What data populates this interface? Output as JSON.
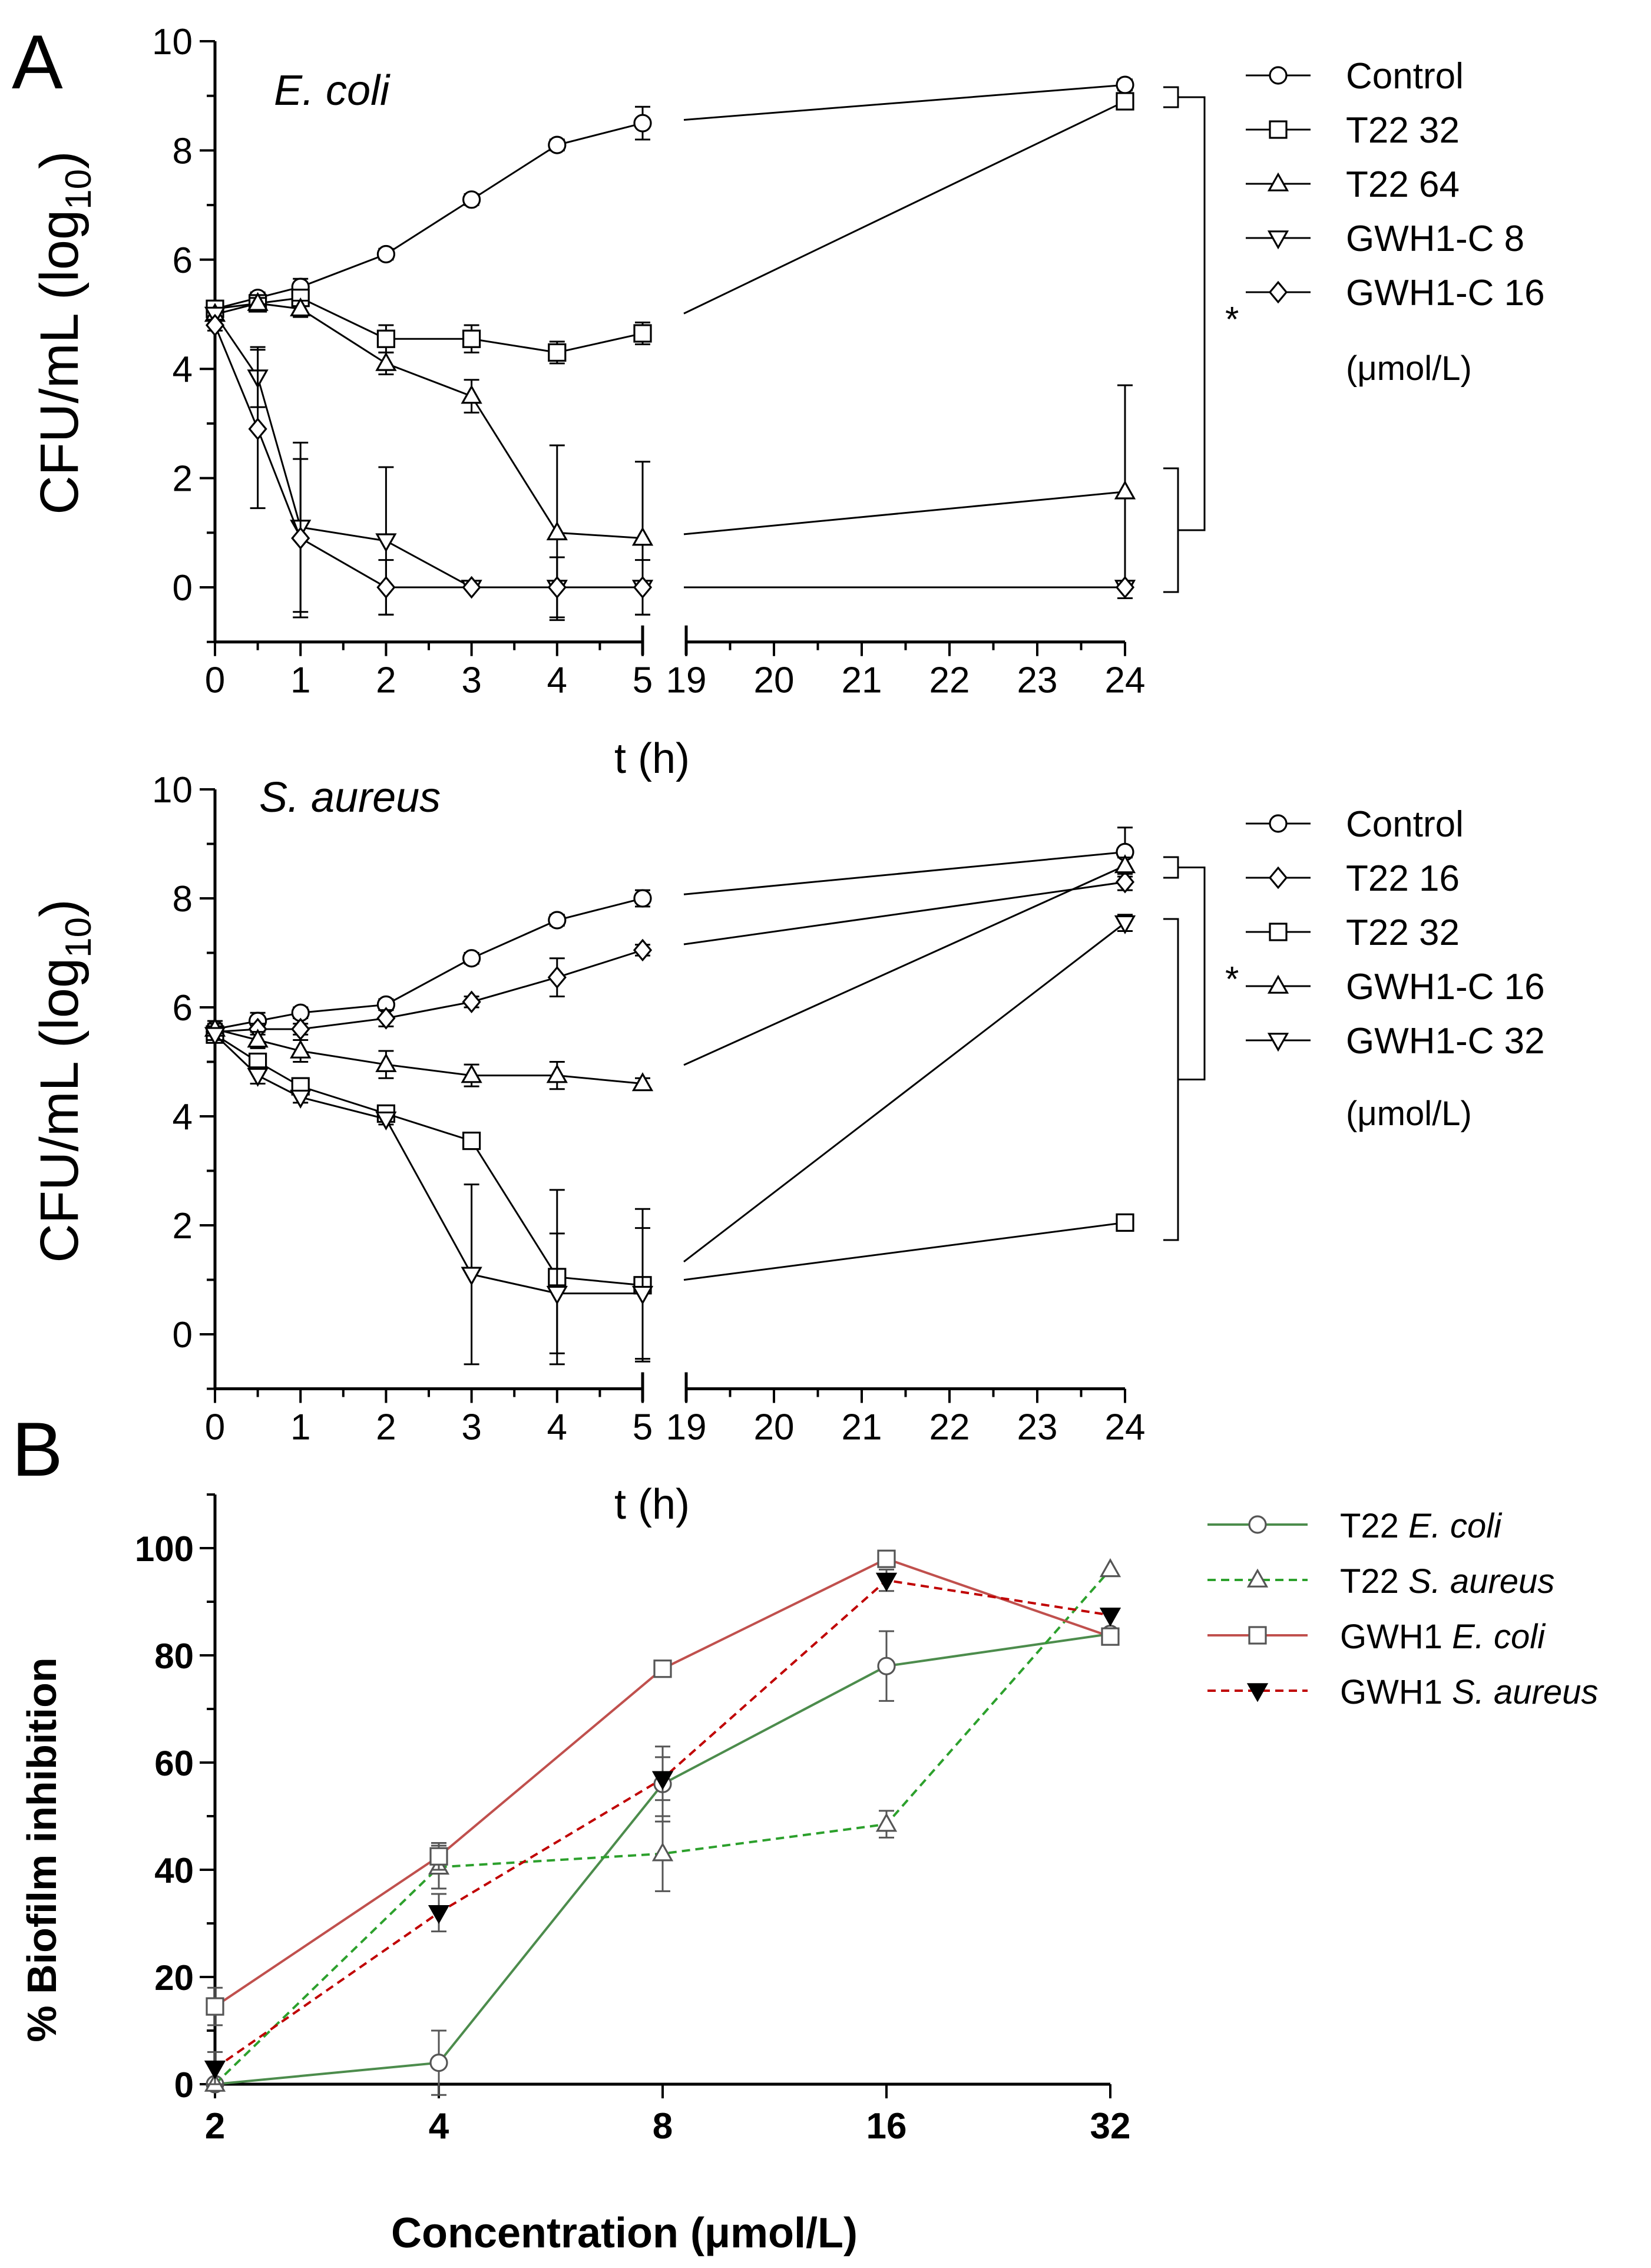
{
  "figure": {
    "panel_a_label": "A",
    "panel_b_label": "B"
  },
  "chart_data": [
    {
      "type": "line",
      "panel": "A",
      "title": "E. coli",
      "xlabel": "t (h)",
      "ylabel": "CFU/mL (log",
      "ylabel_sub": "10",
      "ylabel_close": ")",
      "ylim": [
        -1,
        10
      ],
      "yticks": [
        "0",
        "2",
        "4",
        "6",
        "8",
        "10"
      ],
      "xticks_left": [
        "0",
        "1",
        "2",
        "3",
        "4",
        "5"
      ],
      "xticks_right": [
        "19",
        "20",
        "21",
        "22",
        "23",
        "24"
      ],
      "legend_unit": "(μmol/L)",
      "significance": [
        "*"
      ],
      "series": [
        {
          "name": "Control",
          "marker": "circle",
          "x": [
            0,
            0.5,
            1,
            2,
            3,
            4,
            5,
            24
          ],
          "y": [
            5.1,
            5.3,
            5.5,
            6.1,
            7.1,
            8.1,
            8.5,
            9.2
          ],
          "err": [
            0.1,
            0.1,
            0.15,
            0.1,
            0.1,
            0.1,
            0.3,
            0.1
          ]
        },
        {
          "name": "T22 32",
          "marker": "square",
          "x": [
            0,
            0.5,
            1,
            2,
            3,
            4,
            5,
            24
          ],
          "y": [
            5.1,
            5.2,
            5.3,
            4.55,
            4.55,
            4.3,
            4.65,
            8.9
          ],
          "err": [
            0.1,
            0.1,
            0.15,
            0.25,
            0.25,
            0.2,
            0.2,
            0.1
          ]
        },
        {
          "name": "T22 64",
          "marker": "triangle-up",
          "x": [
            0,
            0.5,
            1,
            2,
            3,
            4,
            5,
            24
          ],
          "y": [
            5.0,
            5.2,
            5.1,
            4.1,
            3.5,
            1.0,
            0.9,
            1.75
          ],
          "err": [
            0.1,
            0.1,
            0.15,
            0.2,
            0.3,
            1.6,
            1.4,
            1.95
          ]
        },
        {
          "name": "GWH1-C 8",
          "marker": "triangle-down",
          "x": [
            0,
            0.5,
            1,
            2,
            3,
            4,
            5,
            24
          ],
          "y": [
            5.0,
            3.85,
            1.1,
            0.85,
            0.0,
            0.0,
            0.0,
            0.0
          ],
          "err": [
            0.1,
            0.55,
            1.55,
            1.35,
            0.0,
            0.0,
            0.0,
            0.0
          ]
        },
        {
          "name": "GWH1-C 16",
          "marker": "diamond",
          "x": [
            0,
            0.5,
            1,
            2,
            3,
            4,
            5,
            24
          ],
          "y": [
            4.8,
            2.9,
            0.9,
            0.0,
            0.0,
            0.0,
            0.0,
            0.0
          ],
          "err": [
            0.1,
            1.45,
            1.45,
            0.5,
            0.0,
            0.55,
            0.5,
            0.0
          ]
        }
      ]
    },
    {
      "type": "line",
      "panel": "A",
      "title": "S. aureus",
      "xlabel": "t (h)",
      "ylabel": "CFU/mL (log",
      "ylabel_sub": "10",
      "ylabel_close": ")",
      "ylim": [
        -1,
        10
      ],
      "yticks": [
        "0",
        "2",
        "4",
        "6",
        "8",
        "10"
      ],
      "xticks_left": [
        "0",
        "1",
        "2",
        "3",
        "4",
        "5"
      ],
      "xticks_right": [
        "19",
        "20",
        "21",
        "22",
        "23",
        "24"
      ],
      "legend_unit": "(μmol/L)",
      "significance": [
        "*"
      ],
      "series": [
        {
          "name": "Control",
          "marker": "circle",
          "x": [
            0,
            0.5,
            1,
            2,
            3,
            4,
            5,
            24
          ],
          "y": [
            5.6,
            5.75,
            5.9,
            6.05,
            6.9,
            7.6,
            8.0,
            8.85
          ],
          "err": [
            0.15,
            0.15,
            0.1,
            0.1,
            0.1,
            0.1,
            0.15,
            0.45
          ]
        },
        {
          "name": "T22 16",
          "marker": "diamond",
          "x": [
            0,
            0.5,
            1,
            2,
            3,
            4,
            5,
            24
          ],
          "y": [
            5.55,
            5.6,
            5.6,
            5.8,
            6.1,
            6.55,
            7.05,
            8.3
          ],
          "err": [
            0.1,
            0.1,
            0.1,
            0.15,
            0.1,
            0.35,
            0.1,
            0.15
          ]
        },
        {
          "name": "T22 32",
          "marker": "square",
          "x": [
            0,
            0.5,
            1,
            2,
            3,
            4,
            5,
            24
          ],
          "y": [
            5.5,
            5.0,
            4.55,
            4.05,
            3.55,
            1.05,
            0.9,
            2.05
          ],
          "err": [
            0.1,
            0.15,
            0.15,
            0.1,
            0.1,
            1.6,
            1.4,
            0.1
          ]
        },
        {
          "name": "GWH1-C 16",
          "marker": "triangle-up",
          "x": [
            0,
            0.5,
            1,
            2,
            3,
            4,
            5,
            24
          ],
          "y": [
            5.6,
            5.4,
            5.2,
            4.95,
            4.75,
            4.75,
            4.6,
            8.6
          ],
          "err": [
            0.1,
            0.15,
            0.2,
            0.25,
            0.2,
            0.25,
            0.1,
            0.15
          ]
        },
        {
          "name": "GWH1-C 32",
          "marker": "triangle-down",
          "x": [
            0,
            0.5,
            1,
            2,
            3,
            4,
            5,
            24
          ],
          "y": [
            5.5,
            4.75,
            4.35,
            3.95,
            1.1,
            0.75,
            0.75,
            7.55
          ],
          "err": [
            0.1,
            0.15,
            0.1,
            0.1,
            1.65,
            1.1,
            1.2,
            0.15
          ]
        }
      ]
    },
    {
      "type": "line",
      "panel": "B",
      "xlabel": "Concentration (μmol/L)",
      "ylabel": "% Biofilm inhibition",
      "ylim": [
        0,
        110
      ],
      "yticks": [
        "0",
        "20",
        "40",
        "60",
        "80",
        "100"
      ],
      "categories": [
        "2",
        "4",
        "8",
        "16",
        "32"
      ],
      "colors": {
        "T22": "#3a8a3a",
        "GWH1": "#b23a3a"
      },
      "series": [
        {
          "name": "T22",
          "species": "E. coli",
          "color": "#4c8c4c",
          "dash": "solid",
          "marker": "circle",
          "values": [
            0,
            4,
            56,
            78,
            84
          ],
          "err": [
            0,
            6,
            7,
            6.5,
            0.5
          ]
        },
        {
          "name": "T22",
          "species": "S. aureus",
          "color": "#2ca02c",
          "dash": "dashed",
          "marker": "triangle-up",
          "values": [
            0,
            40.5,
            43,
            48.5,
            96
          ],
          "err": [
            0,
            4,
            7,
            2.5,
            0.5
          ]
        },
        {
          "name": "GWH1",
          "species": "E. coli",
          "color": "#c0504d",
          "dash": "solid",
          "marker": "square",
          "values": [
            14.5,
            42.5,
            77.5,
            98,
            83.5
          ],
          "err": [
            3.5,
            2.5,
            0.5,
            0.5,
            0.5
          ]
        },
        {
          "name": "GWH1",
          "species": "S. aureus",
          "color": "#c00000",
          "dash": "dashed",
          "marker": "triangle-down-filled",
          "values": [
            3,
            32,
            57,
            94,
            87.5
          ],
          "err": [
            3,
            3.5,
            4,
            2,
            0.5
          ]
        }
      ]
    }
  ]
}
